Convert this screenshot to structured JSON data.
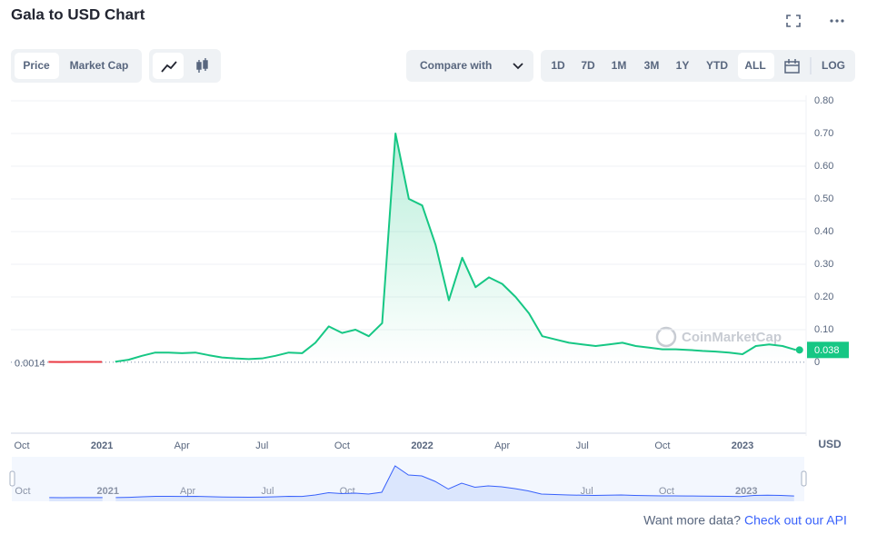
{
  "ui": {
    "tabs": [
      "Price",
      "Market Cap"
    ],
    "compare": "Compare with",
    "ranges": [
      "1D",
      "7D",
      "1M",
      "3M",
      "1Y",
      "YTD",
      "ALL"
    ],
    "log": "LOG",
    "watermark": "CoinMarketCap",
    "footer": "Want more data?",
    "footer_link": "Check out our API"
  },
  "chart_data": {
    "type": "line",
    "title": "Gala to USD Chart",
    "y_unit": "USD",
    "categories": [
      "Oct",
      null,
      null,
      null,
      null,
      null,
      "2021",
      null,
      null,
      null,
      null,
      null,
      "Apr",
      null,
      null,
      null,
      null,
      null,
      "Jul",
      null,
      null,
      null,
      null,
      null,
      "Oct",
      null,
      null,
      null,
      null,
      null,
      "2022",
      null,
      null,
      null,
      null,
      null,
      "Apr",
      null,
      null,
      null,
      null,
      null,
      "Jul",
      null,
      null,
      null,
      null,
      null,
      "Oct",
      null,
      null,
      null,
      null,
      null,
      "2023",
      null,
      null,
      null,
      null
    ],
    "values": [
      null,
      null,
      0.0014,
      0.0012,
      0.0013,
      0.0013,
      0.0014,
      0.002,
      0.008,
      0.02,
      0.03,
      0.03,
      0.028,
      0.03,
      0.022,
      0.015,
      0.012,
      0.01,
      0.012,
      0.02,
      0.03,
      0.028,
      0.06,
      0.11,
      0.09,
      0.1,
      0.08,
      0.12,
      0.7,
      0.5,
      0.48,
      0.36,
      0.19,
      0.32,
      0.23,
      0.26,
      0.24,
      0.2,
      0.15,
      0.08,
      0.07,
      0.06,
      0.055,
      0.05,
      0.055,
      0.06,
      0.05,
      0.045,
      0.04,
      0.04,
      0.038,
      0.035,
      0.033,
      0.03,
      0.025,
      0.05,
      0.055,
      0.05,
      0.038
    ],
    "baseline": 0.0014,
    "color": "#16c784",
    "below_color": "#ea3943",
    "nav_color": "#3861fb",
    "ylim": [
      0,
      0.8
    ],
    "yticks": [
      0,
      {
        "value": 0.1,
        "label": "0.10"
      },
      {
        "value": 0.2,
        "label": "0.20"
      },
      {
        "value": 0.3,
        "label": "0.30"
      },
      {
        "value": 0.4,
        "label": "0.40"
      },
      {
        "value": 0.5,
        "label": "0.50"
      },
      {
        "value": 0.6,
        "label": "0.60"
      },
      {
        "value": 0.7,
        "label": "0.70"
      },
      {
        "value": 0.8,
        "label": "0.80"
      }
    ],
    "grid": true
  }
}
